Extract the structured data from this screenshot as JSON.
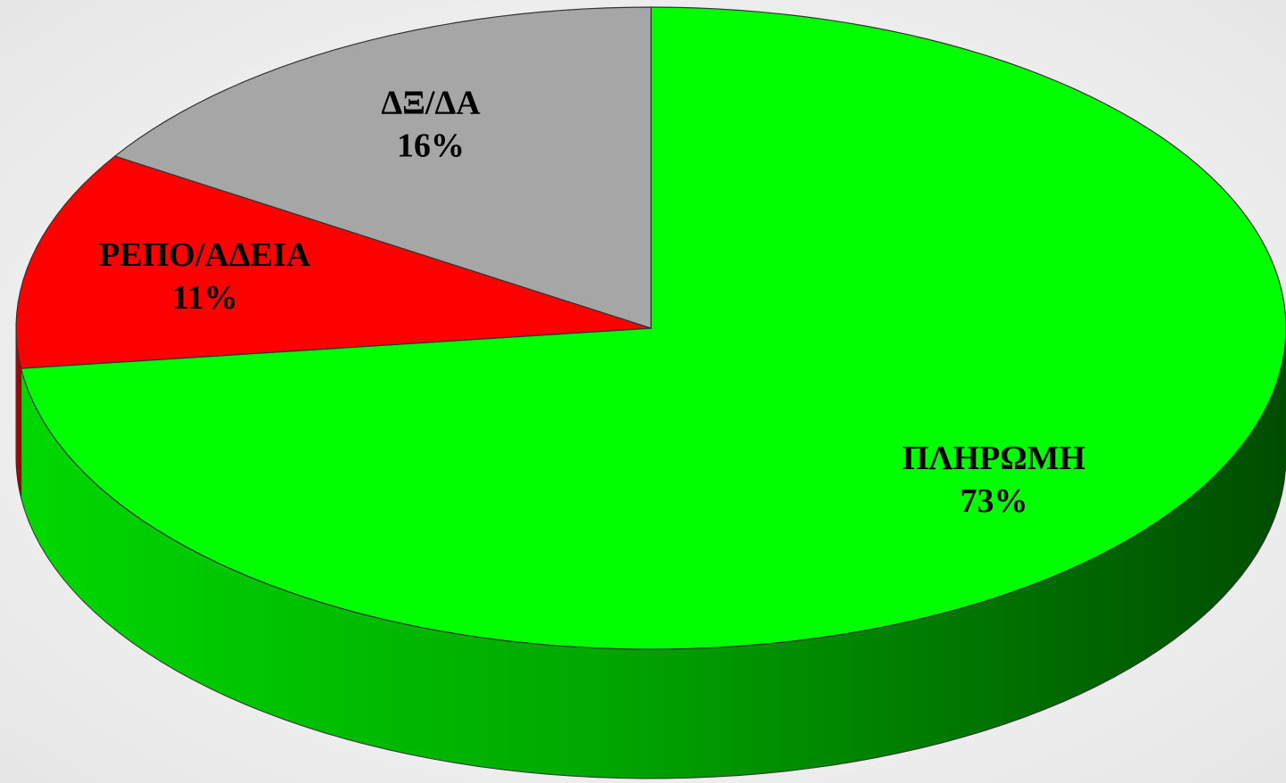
{
  "chart_data": {
    "type": "pie",
    "categories": [
      "ΠΛΗΡΩΜΗ",
      "ΡΕΠΟ/ΑΔΕΙΑ",
      "ΔΞ/ΔΑ"
    ],
    "values": [
      73,
      11,
      16
    ],
    "value_labels": [
      "73%",
      "11%",
      "16%"
    ],
    "colors": [
      "#00ff00",
      "#ff0000",
      "#a6a6a6"
    ]
  }
}
